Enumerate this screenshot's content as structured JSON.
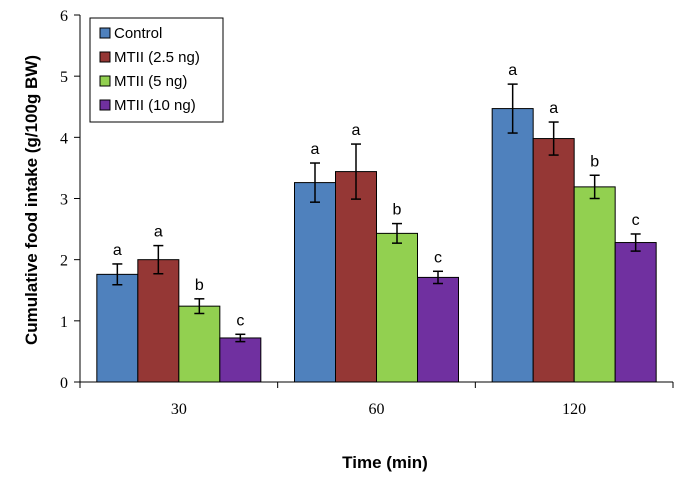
{
  "chart_data": {
    "type": "bar",
    "categories": [
      "30",
      "60",
      "120"
    ],
    "series": [
      {
        "name": "Control",
        "color": "#4F81BD",
        "values": [
          1.76,
          3.26,
          4.47
        ],
        "errors": [
          0.17,
          0.32,
          0.4
        ],
        "labels": [
          "a",
          "a",
          "a"
        ]
      },
      {
        "name": "MTII (2.5 ng)",
        "color": "#953735",
        "values": [
          2.0,
          3.44,
          3.98
        ],
        "errors": [
          0.23,
          0.45,
          0.27
        ],
        "labels": [
          "a",
          "a",
          "a"
        ]
      },
      {
        "name": "MTII (5 ng)",
        "color": "#92D050",
        "values": [
          1.24,
          2.43,
          3.19
        ],
        "errors": [
          0.12,
          0.16,
          0.19
        ],
        "labels": [
          "b",
          "b",
          "b"
        ]
      },
      {
        "name": "MTII (10 ng)",
        "color": "#7030A0",
        "values": [
          0.72,
          1.71,
          2.28
        ],
        "errors": [
          0.06,
          0.1,
          0.14
        ],
        "labels": [
          "c",
          "c",
          "c"
        ]
      }
    ],
    "xlabel": "Time (min)",
    "ylabel": "Cumulative food intake (g/100g BW)",
    "ylim": [
      0,
      6
    ],
    "yticks": [
      0,
      1,
      2,
      3,
      4,
      5,
      6
    ],
    "grid": false,
    "legend_position": "top-left"
  }
}
